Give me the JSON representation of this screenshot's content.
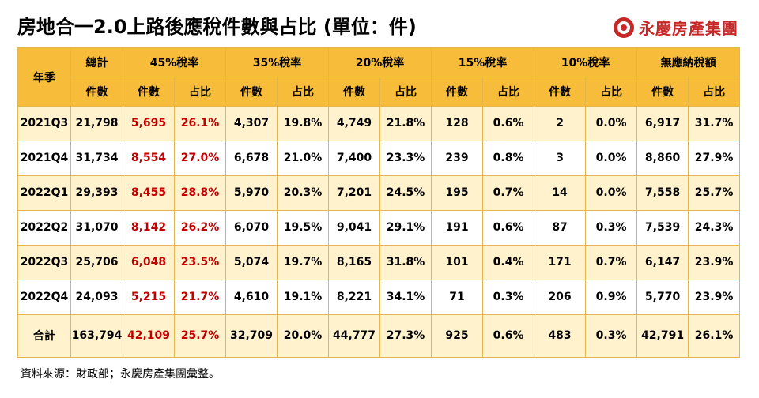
{
  "title": "房地合一2.0上路後應稅件數與占比 (單位：件)",
  "logo": {
    "text": "永慶房產集團",
    "icon": "yungching-circle-logo-icon",
    "color": "#c62828"
  },
  "colors": {
    "header": "#f7bd3a",
    "alt_row": "#fff2cc",
    "highlight": "#c00000"
  },
  "table": {
    "row_header": "年季",
    "groups": [
      "總計",
      "45%稅率",
      "35%稅率",
      "20%稅率",
      "15%稅率",
      "10%稅率",
      "無應納稅額"
    ],
    "sub_count": "件數",
    "sub_share": "占比",
    "rows": [
      {
        "q": "2021Q3",
        "total": "21,798",
        "c45": "5,695",
        "p45": "26.1%",
        "c35": "4,307",
        "p35": "19.8%",
        "c20": "4,749",
        "p20": "21.8%",
        "c15": "128",
        "p15": "0.6%",
        "c10": "2",
        "p10": "0.0%",
        "c0": "6,917",
        "p0": "31.7%"
      },
      {
        "q": "2021Q4",
        "total": "31,734",
        "c45": "8,554",
        "p45": "27.0%",
        "c35": "6,678",
        "p35": "21.0%",
        "c20": "7,400",
        "p20": "23.3%",
        "c15": "239",
        "p15": "0.8%",
        "c10": "3",
        "p10": "0.0%",
        "c0": "8,860",
        "p0": "27.9%"
      },
      {
        "q": "2022Q1",
        "total": "29,393",
        "c45": "8,455",
        "p45": "28.8%",
        "c35": "5,970",
        "p35": "20.3%",
        "c20": "7,201",
        "p20": "24.5%",
        "c15": "195",
        "p15": "0.7%",
        "c10": "14",
        "p10": "0.0%",
        "c0": "7,558",
        "p0": "25.7%"
      },
      {
        "q": "2022Q2",
        "total": "31,070",
        "c45": "8,142",
        "p45": "26.2%",
        "c35": "6,070",
        "p35": "19.5%",
        "c20": "9,041",
        "p20": "29.1%",
        "c15": "191",
        "p15": "0.6%",
        "c10": "87",
        "p10": "0.3%",
        "c0": "7,539",
        "p0": "24.3%"
      },
      {
        "q": "2022Q3",
        "total": "25,706",
        "c45": "6,048",
        "p45": "23.5%",
        "c35": "5,074",
        "p35": "19.7%",
        "c20": "8,165",
        "p20": "31.8%",
        "c15": "101",
        "p15": "0.4%",
        "c10": "171",
        "p10": "0.7%",
        "c0": "6,147",
        "p0": "23.9%"
      },
      {
        "q": "2022Q4",
        "total": "24,093",
        "c45": "5,215",
        "p45": "21.7%",
        "c35": "4,610",
        "p35": "19.1%",
        "c20": "8,221",
        "p20": "34.1%",
        "c15": "71",
        "p15": "0.3%",
        "c10": "206",
        "p10": "0.9%",
        "c0": "5,770",
        "p0": "23.9%"
      }
    ],
    "total_row": {
      "q": "合計",
      "total": "163,794",
      "c45": "42,109",
      "p45": "25.7%",
      "c35": "32,709",
      "p35": "20.0%",
      "c20": "44,777",
      "p20": "27.3%",
      "c15": "925",
      "p15": "0.6%",
      "c10": "483",
      "p10": "0.3%",
      "c0": "42,791",
      "p0": "26.1%"
    }
  },
  "source": "資料來源：財政部；永慶房產集團彙整。"
}
